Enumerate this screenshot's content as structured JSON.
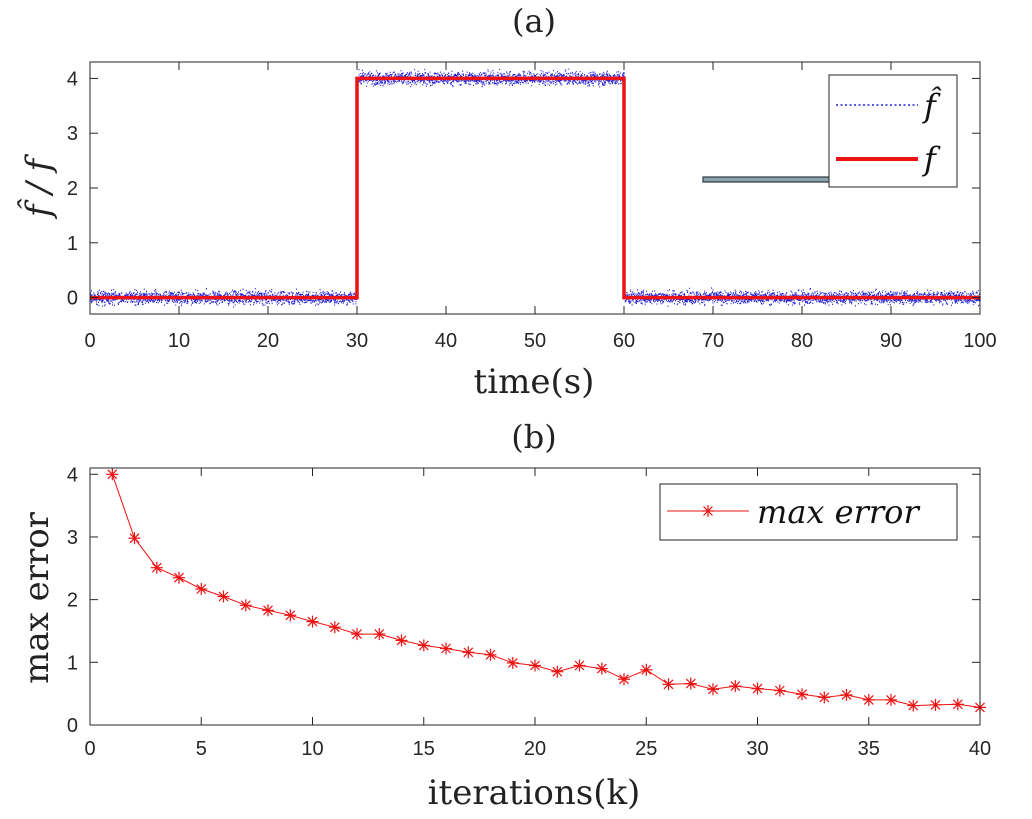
{
  "chart_data": [
    {
      "type": "line",
      "panel_label": "(a)",
      "title": "(a)",
      "xlabel": "time(s)",
      "ylabel": "f̂ / f",
      "xlim": [
        0,
        100
      ],
      "ylim": [
        -0.3,
        4.3
      ],
      "xticks": [
        0,
        10,
        20,
        30,
        40,
        50,
        60,
        70,
        80,
        90,
        100
      ],
      "yticks": [
        0,
        1,
        2,
        3,
        4
      ],
      "grid": false,
      "legend_position": "top-right",
      "series": [
        {
          "name": "f̂",
          "style": "dotted",
          "color": "#1f1fd6",
          "description_values": {
            "segments": [
              {
                "x": [
                  0,
                  30
                ],
                "y_mean": 0,
                "noise": 0.1
              },
              {
                "x": [
                  30,
                  60
                ],
                "y_mean": 4,
                "noise": 0.1
              },
              {
                "x": [
                  60,
                  100
                ],
                "y_mean": 0,
                "noise": 0.1
              }
            ]
          }
        },
        {
          "name": "f",
          "style": "solid",
          "color": "#ee1111",
          "x": [
            0,
            30,
            30,
            60,
            60,
            100
          ],
          "y": [
            0,
            0,
            4,
            4,
            0,
            0
          ]
        }
      ]
    },
    {
      "type": "line",
      "panel_label": "(b)",
      "title": "(b)",
      "xlabel": "iterations(k)",
      "ylabel": "max error",
      "xlim": [
        0,
        40
      ],
      "ylim": [
        0,
        4.1
      ],
      "xticks": [
        0,
        5,
        10,
        15,
        20,
        25,
        30,
        35,
        40
      ],
      "yticks": [
        0,
        1,
        2,
        3,
        4
      ],
      "grid": false,
      "legend_position": "top-right",
      "series": [
        {
          "name": "max error",
          "marker": "asterisk",
          "color": "#ee1111",
          "x": [
            1,
            2,
            3,
            4,
            5,
            6,
            7,
            8,
            9,
            10,
            11,
            12,
            13,
            14,
            15,
            16,
            17,
            18,
            19,
            20,
            21,
            22,
            23,
            24,
            25,
            26,
            27,
            28,
            29,
            30,
            31,
            32,
            33,
            34,
            35,
            36,
            37,
            38,
            39,
            40
          ],
          "y": [
            4.0,
            2.98,
            2.51,
            2.35,
            2.17,
            2.05,
            1.91,
            1.83,
            1.75,
            1.65,
            1.56,
            1.45,
            1.45,
            1.35,
            1.27,
            1.22,
            1.16,
            1.12,
            0.99,
            0.95,
            0.85,
            0.95,
            0.9,
            0.73,
            0.88,
            0.65,
            0.66,
            0.57,
            0.62,
            0.58,
            0.55,
            0.49,
            0.44,
            0.48,
            0.4,
            0.4,
            0.31,
            0.32,
            0.33,
            0.28
          ]
        }
      ]
    }
  ]
}
